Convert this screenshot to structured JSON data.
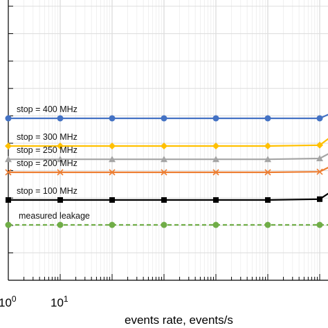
{
  "chart_data": {
    "type": "line",
    "xlabel": "events rate, events/s",
    "x_scale": "log",
    "xlim": [
      1,
      1000000
    ],
    "x_tick_labels": [
      {
        "base": "10",
        "exp": "0",
        "x": 1
      },
      {
        "base": "10",
        "exp": "1",
        "x": 10
      }
    ],
    "grid": true,
    "x": [
      1,
      10,
      100,
      1000,
      10000,
      100000,
      1000000,
      2000000
    ],
    "series": [
      {
        "name": "stop = 400 MHz",
        "color": "#4472C4",
        "marker": "circle",
        "dashed": false,
        "values": [
          0.585,
          0.585,
          0.585,
          0.585,
          0.585,
          0.585,
          0.585,
          0.61
        ]
      },
      {
        "name": "stop = 300 MHz",
        "color": "#FFC000",
        "marker": "diamond",
        "dashed": false,
        "values": [
          0.485,
          0.485,
          0.485,
          0.485,
          0.485,
          0.485,
          0.488,
          0.53
        ]
      },
      {
        "name": "stop = 250 MHz",
        "color": "#A5A5A5",
        "marker": "triangle",
        "dashed": false,
        "values": [
          0.437,
          0.437,
          0.437,
          0.437,
          0.437,
          0.437,
          0.44,
          0.47
        ]
      },
      {
        "name": "stop = 200 MHz",
        "color": "#ED7D31",
        "marker": "x",
        "dashed": false,
        "values": [
          0.39,
          0.39,
          0.39,
          0.39,
          0.39,
          0.39,
          0.392,
          0.42
        ]
      },
      {
        "name": "stop = 100 MHz",
        "color": "#000000",
        "marker": "square",
        "dashed": false,
        "values": [
          0.29,
          0.29,
          0.29,
          0.29,
          0.29,
          0.29,
          0.293,
          0.33
        ]
      },
      {
        "name": "measured leakage",
        "color": "#70AD47",
        "marker": "circle",
        "dashed": true,
        "values": [
          0.2,
          0.2,
          0.2,
          0.2,
          0.2,
          0.2,
          0.2,
          0.2
        ]
      }
    ]
  }
}
